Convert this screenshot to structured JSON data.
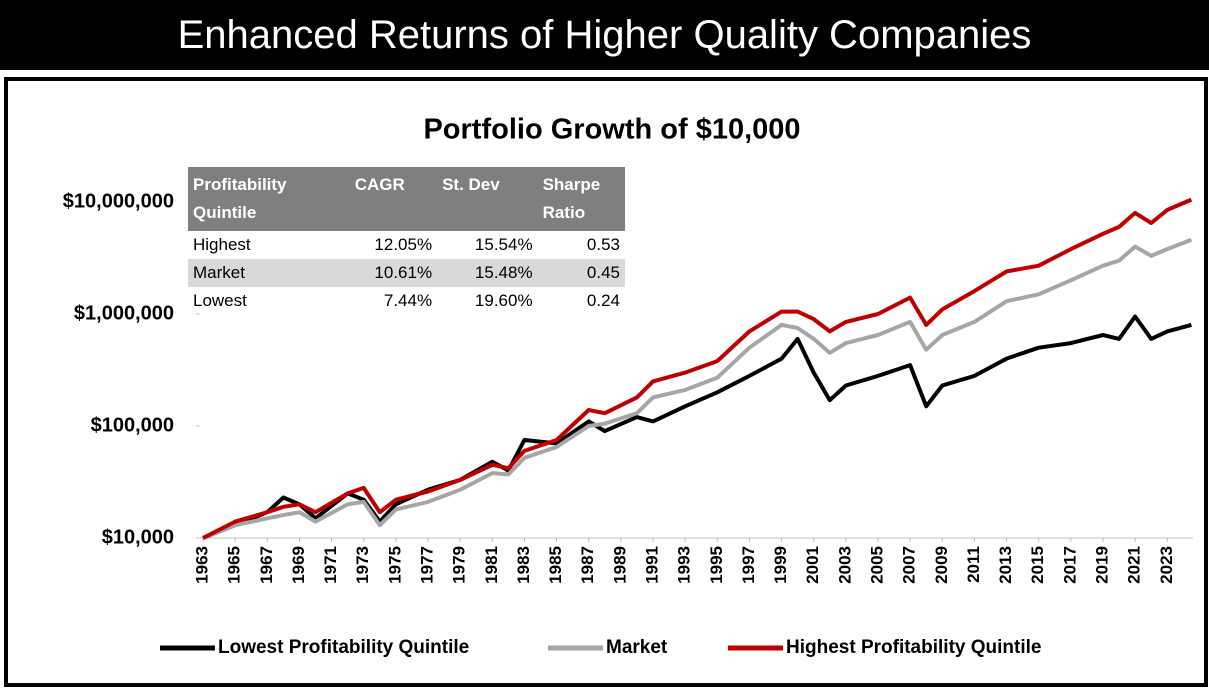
{
  "banner": {
    "title": "Enhanced Returns of Higher Quality Companies"
  },
  "chart_data": {
    "type": "line",
    "title": "Portfolio Growth of $10,000",
    "log_scale": true,
    "legend": "bottom",
    "x": [
      1963,
      1965,
      1967,
      1968,
      1969,
      1970,
      1972,
      1973,
      1974,
      1975,
      1977,
      1979,
      1981,
      1982,
      1983,
      1985,
      1987,
      1988,
      1990,
      1991,
      1993,
      1995,
      1997,
      1999,
      2000,
      2001,
      2002,
      2003,
      2005,
      2007,
      2008,
      2009,
      2011,
      2013,
      2015,
      2017,
      2019,
      2020,
      2021,
      2022,
      2023,
      2024.5
    ],
    "series": [
      {
        "name": "Lowest Profitability Quintile",
        "color": "#000000",
        "values": [
          10000,
          13000,
          17000,
          23000,
          20000,
          15000,
          25000,
          22000,
          14000,
          20000,
          27000,
          33000,
          48000,
          40000,
          75000,
          70000,
          110000,
          90000,
          120000,
          110000,
          150000,
          200000,
          280000,
          400000,
          600000,
          300000,
          170000,
          230000,
          280000,
          350000,
          150000,
          230000,
          280000,
          400000,
          500000,
          550000,
          650000,
          600000,
          950000,
          600000,
          700000,
          800000
        ]
      },
      {
        "name": "Market",
        "color": "#a6a6a6",
        "values": [
          10000,
          13000,
          15000,
          16000,
          17000,
          14000,
          20000,
          21000,
          13000,
          18000,
          21000,
          27000,
          38000,
          37000,
          52000,
          65000,
          100000,
          105000,
          130000,
          180000,
          210000,
          270000,
          500000,
          800000,
          750000,
          600000,
          450000,
          550000,
          650000,
          850000,
          480000,
          650000,
          850000,
          1300000,
          1500000,
          2000000,
          2700000,
          3000000,
          4000000,
          3300000,
          3800000,
          4600000
        ]
      },
      {
        "name": "Highest Profitability Quintile",
        "color": "#c00000",
        "values": [
          10000,
          14000,
          17000,
          19000,
          20000,
          17000,
          25000,
          28000,
          17000,
          22000,
          26000,
          33000,
          45000,
          42000,
          60000,
          75000,
          139000,
          130000,
          180000,
          250000,
          300000,
          380000,
          700000,
          1050000,
          1050000,
          900000,
          700000,
          850000,
          1000000,
          1400000,
          800000,
          1100000,
          1600000,
          2400000,
          2700000,
          3800000,
          5200000,
          6000000,
          8000000,
          6500000,
          8500000,
          10500000
        ]
      }
    ],
    "xlim": [
      1962.8,
      2024.6
    ],
    "xticks": [
      1963,
      1965,
      1967,
      1969,
      1971,
      1973,
      1975,
      1977,
      1979,
      1981,
      1983,
      1985,
      1987,
      1989,
      1991,
      1993,
      1995,
      1997,
      1999,
      2001,
      2003,
      2005,
      2007,
      2009,
      2011,
      2013,
      2015,
      2017,
      2019,
      2021,
      2023
    ],
    "ylim": [
      10000,
      20000000
    ],
    "yticks": [
      {
        "value": 10000,
        "label": "$10,000"
      },
      {
        "value": 100000,
        "label": "$100,000"
      },
      {
        "value": 1000000,
        "label": "$1,000,000"
      },
      {
        "value": 10000000,
        "label": "$10,000,000"
      }
    ],
    "table": {
      "header": [
        "Profitability Quintile",
        "CAGR",
        "St. Dev",
        "Sharpe Ratio"
      ],
      "rows": [
        [
          "Highest",
          "12.05%",
          "15.54%",
          "0.53"
        ],
        [
          "Market",
          "10.61%",
          "15.48%",
          "0.45"
        ],
        [
          "Lowest",
          "7.44%",
          "19.60%",
          "0.24"
        ]
      ]
    }
  }
}
